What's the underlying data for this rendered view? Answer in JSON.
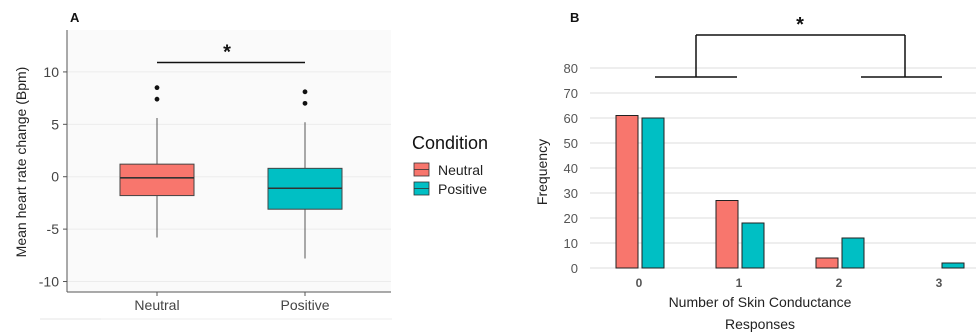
{
  "chart_data": [
    {
      "panel": "A",
      "type": "box",
      "ylabel": "Mean heart rate change (Bpm)",
      "yticks": [
        10,
        5,
        0,
        -5,
        -10
      ],
      "ylim": [
        -11,
        14
      ],
      "categories": [
        "Neutral",
        "Positive"
      ],
      "boxes": [
        {
          "category": "Neutral",
          "min": -5.8,
          "q1": -1.8,
          "median": -0.1,
          "q3": 1.2,
          "max": 5.6,
          "outliers": [
            8.5,
            7.4
          ]
        },
        {
          "category": "Positive",
          "min": -7.8,
          "q1": -3.1,
          "median": -1.1,
          "q3": 0.8,
          "max": 5.2,
          "outliers": [
            8.1,
            7.0
          ]
        }
      ],
      "significance": {
        "label": "*",
        "between": [
          "Neutral",
          "Positive"
        ],
        "y": 10.9
      },
      "legend": {
        "title": "Condition",
        "placement": "right",
        "entries": [
          {
            "name": "Neutral",
            "color": "#F8766D"
          },
          {
            "name": "Positive",
            "color": "#00BFC4"
          }
        ]
      },
      "grid": true
    },
    {
      "panel": "B",
      "type": "bar",
      "ylabel": "Frequency",
      "xlabel_lines": [
        "Number of Skin Conductance",
        "Responses"
      ],
      "categories": [
        "0",
        "1",
        "2",
        "3"
      ],
      "yticks": [
        0,
        10,
        20,
        30,
        40,
        50,
        60,
        70,
        80
      ],
      "ylim": [
        0,
        80
      ],
      "series": [
        {
          "values": [
            61,
            27,
            4,
            0
          ],
          "color": "#F8766D"
        },
        {
          "values": [
            60,
            18,
            12,
            2
          ],
          "color": "#00BFC4"
        }
      ],
      "significance": {
        "label": "*"
      },
      "grid": true
    }
  ]
}
